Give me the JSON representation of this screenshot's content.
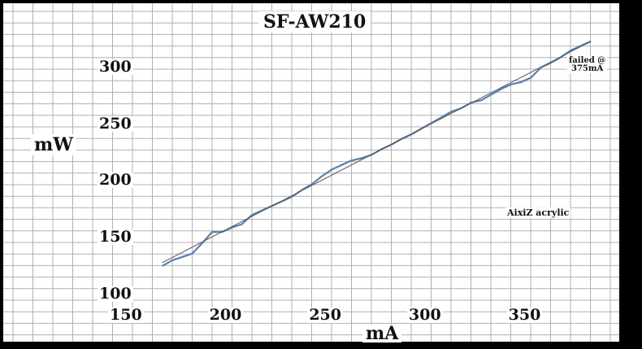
{
  "chart_data": {
    "type": "line",
    "title": "SF-AW210",
    "xlabel": "mA",
    "ylabel": "mW",
    "xlim": [
      150,
      375
    ],
    "ylim": [
      100,
      330
    ],
    "x_ticks": [
      150,
      200,
      250,
      300,
      350
    ],
    "y_ticks": [
      100,
      150,
      200,
      250,
      300
    ],
    "grid": true,
    "annotations": [
      {
        "text": "failed @",
        "text2": "375mA"
      },
      {
        "text": "AixiZ acrylic"
      }
    ],
    "series": [
      {
        "kind": "measured",
        "color": "#5a7fae",
        "x": [
          160,
          165,
          170,
          175,
          180,
          185,
          190,
          195,
          200,
          205,
          210,
          215,
          220,
          225,
          230,
          235,
          240,
          245,
          250,
          255,
          260,
          265,
          270,
          275,
          280,
          285,
          290,
          295,
          300,
          305,
          310,
          315,
          320,
          325,
          330,
          335,
          340,
          345,
          350,
          355,
          360,
          365,
          370,
          375
        ],
        "y": [
          125,
          130,
          133,
          136,
          145,
          155,
          155,
          159,
          162,
          170,
          174,
          178,
          182,
          186,
          192,
          197,
          204,
          210,
          214,
          218,
          220,
          223,
          228,
          232,
          237,
          241,
          246,
          251,
          256,
          261,
          264,
          269,
          271,
          276,
          281,
          285,
          287,
          291,
          300,
          304,
          309,
          315,
          319,
          323
        ]
      },
      {
        "kind": "trend",
        "color": "#555555",
        "x": [
          160,
          375
        ],
        "y": [
          128,
          323
        ]
      }
    ]
  },
  "colors": {
    "background": "#ffffff",
    "frame": "#000000",
    "grid": "#b0b0b0",
    "measured": "#5a7fae",
    "trend": "#555555"
  }
}
